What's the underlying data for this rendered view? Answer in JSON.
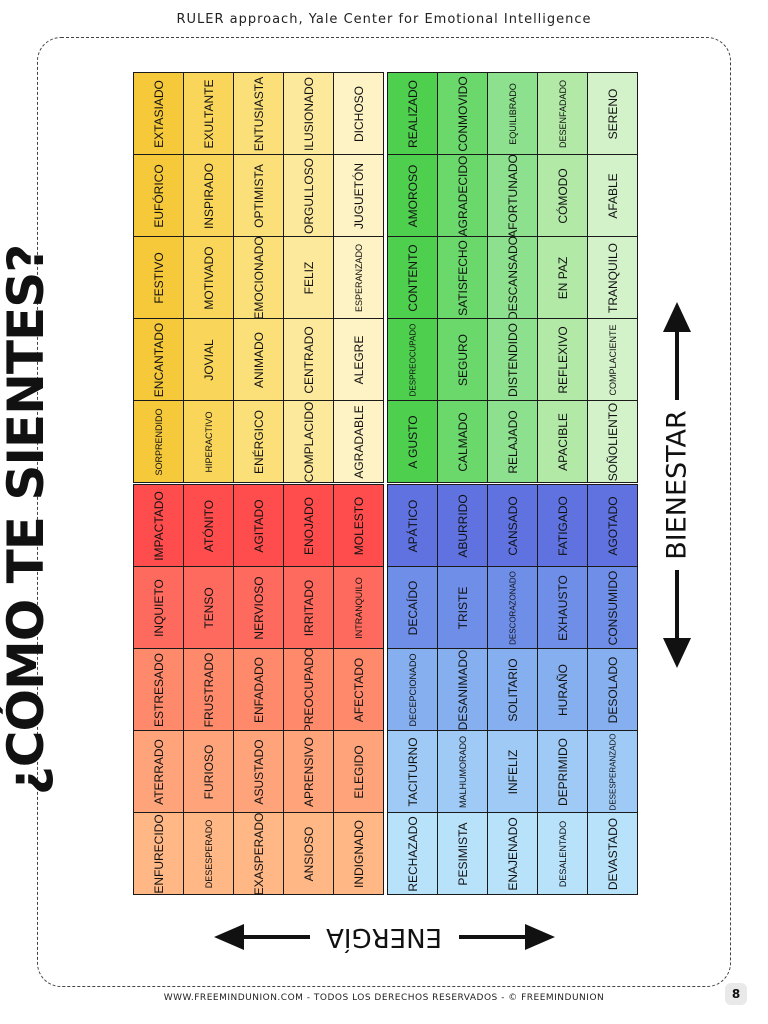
{
  "header": "RULER approach, Yale Center for Emotional Intelligence",
  "title": "¿CÓMO TE SIENTES?",
  "axis_wellbeing": "BIENESTAR",
  "axis_energy": "ENERGÍA",
  "footer": "WWW.FREEMINDUNION.COM - TODOS LOS DERECHOS RESERVADOS - © FREEMINDUNION",
  "page_number": "8",
  "colors": {
    "red_yellow_scale": [
      "#ff4d4d",
      "#ff6a5e",
      "#ff8a6b",
      "#ffa47a",
      "#ffb785"
    ],
    "yellow_scale": [
      "#f6c93a",
      "#f9d65a",
      "#fbe07a",
      "#fde99c",
      "#fef3c4"
    ],
    "green_scale": [
      "#4ecf4e",
      "#6ad86a",
      "#8de08d",
      "#b2e9a6",
      "#d3f2c9"
    ],
    "blue_scale": [
      "#5f72e0",
      "#6f8ee8",
      "#86aff0",
      "#9fcaf5",
      "#b8e1fa"
    ]
  },
  "quadrants": {
    "yellow": [
      [
        "EXTASIADO",
        "EUFÓRICO",
        "FESTIVO",
        "ENCANTADO",
        "SORPRENDIDO"
      ],
      [
        "EXULTANTE",
        "INSPIRADO",
        "MOTIVADO",
        "JOVIAL",
        "HIPERACTIVO"
      ],
      [
        "ENTUSIASTA",
        "OPTIMISTA",
        "EMOCIONADO",
        "ANIMADO",
        "ENÉRGICO"
      ],
      [
        "ILUSIONADO",
        "ORGULLOSO",
        "FELIZ",
        "CENTRADO",
        "COMPLACIDO"
      ],
      [
        "DICHOSO",
        "JUGUETÓN",
        "ESPERANZADO",
        "ALEGRE",
        "AGRADABLE"
      ]
    ],
    "green": [
      [
        "REALIZADO",
        "AMOROSO",
        "CONTENTO",
        "DESPREOCUPADO",
        "A GUSTO"
      ],
      [
        "CONMOVIDO",
        "AGRADECIDO",
        "SATISFECHO",
        "SEGURO",
        "CALMADO"
      ],
      [
        "EQUILIBRADO",
        "AFORTUNADO",
        "DESCANSADO",
        "DISTENDIDO",
        "RELAJADO"
      ],
      [
        "DESENFADADO",
        "CÓMODO",
        "EN PAZ",
        "REFLEXIVO",
        "APACIBLE"
      ],
      [
        "SERENO",
        "AFABLE",
        "TRANQUILO",
        "COMPLACIENTE",
        "SOÑOLIENTO"
      ]
    ],
    "red": [
      [
        "IMPACTADO",
        "INQUIETO",
        "ESTRESADO",
        "ATERRADO",
        "ENFURECIDO"
      ],
      [
        "ATÓNITO",
        "TENSO",
        "FRUSTRADO",
        "FURIOSO",
        "DESESPERADO"
      ],
      [
        "AGITADO",
        "NERVIOSO",
        "ENFADADO",
        "ASUSTADO",
        "EXASPERADO"
      ],
      [
        "ENOJADO",
        "IRRITADO",
        "PREOCUPADO",
        "APRENSIVO",
        "ANSIOSO"
      ],
      [
        "MOLESTO",
        "INTRANQUILO",
        "AFECTADO",
        "ELEGIDO",
        "INDIGNADO"
      ]
    ],
    "blue": [
      [
        "APÁTICO",
        "DECAÍDO",
        "DECEPCIONADO",
        "TACITURNO",
        "RECHAZADO"
      ],
      [
        "ABURRIDO",
        "TRISTE",
        "DESANIMADO",
        "MALHUMORADO",
        "PESIMISTA"
      ],
      [
        "CANSADO",
        "DESCORAZONADO",
        "SOLITARIO",
        "INFELIZ",
        "ENAJENADO"
      ],
      [
        "FATIGADO",
        "EXHAUSTO",
        "HURAÑO",
        "DEPRIMIDO",
        "DESALENTADO"
      ],
      [
        "AGOTADO",
        "CONSUMIDO",
        "DESOLADO",
        "DESESPERANZADO",
        "DEVASTADO"
      ]
    ]
  }
}
